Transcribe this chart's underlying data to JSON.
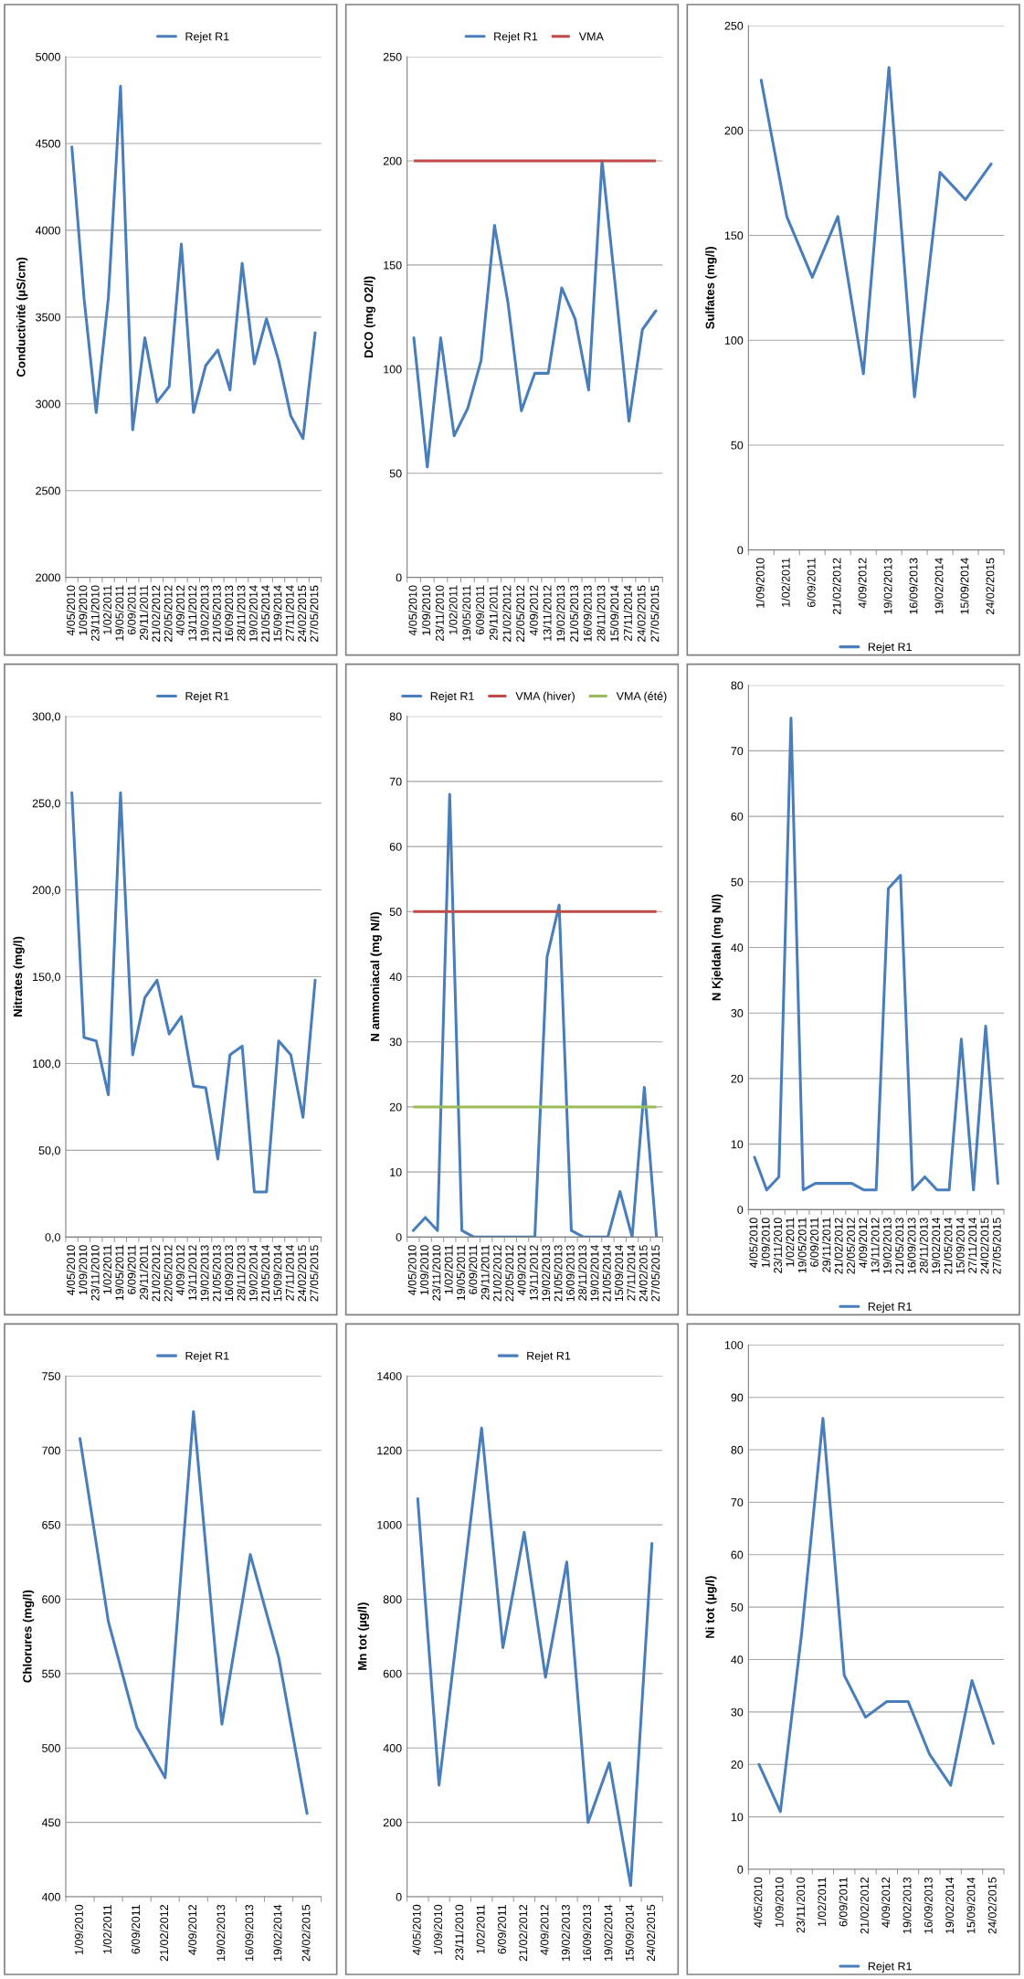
{
  "chart_data": [
    {
      "type": "line",
      "ylabel": "Conductivité (µS/cm)",
      "categories": [
        "4/05/2010",
        "1/09/2010",
        "23/11/2010",
        "1/02/2011",
        "19/05/2011",
        "6/09/2011",
        "29/11/2011",
        "21/02/2012",
        "22/05/2012",
        "4/09/2012",
        "13/11/2012",
        "19/02/2013",
        "21/05/2013",
        "16/09/2013",
        "28/11/2013",
        "19/02/2014",
        "21/05/2014",
        "15/09/2014",
        "27/11/2014",
        "24/02/2015",
        "27/05/2015"
      ],
      "series": [
        {
          "name": "Rejet R1",
          "color": "#4a7ebb",
          "values": [
            4480,
            3610,
            2950,
            3610,
            4830,
            2850,
            3380,
            3010,
            3100,
            3920,
            2950,
            3220,
            3310,
            3080,
            3810,
            3230,
            3490,
            3250,
            2930,
            2800,
            3410
          ]
        }
      ],
      "ylim": [
        2000,
        5000
      ],
      "yticks": [
        2000,
        2500,
        3000,
        3500,
        4000,
        4500,
        5000
      ],
      "grid": "y",
      "legend": "top"
    },
    {
      "type": "line",
      "ylabel": "DCO (mg O2/l)",
      "categories": [
        "4/05/2010",
        "1/09/2010",
        "23/11/2010",
        "1/02/2011",
        "19/05/2011",
        "6/09/2011",
        "29/11/2011",
        "21/02/2012",
        "22/05/2012",
        "4/09/2012",
        "13/11/2012",
        "19/02/2013",
        "21/05/2013",
        "16/09/2013",
        "28/11/2013",
        "15/09/2014",
        "27/11/2014",
        "24/02/2015",
        "27/05/2015"
      ],
      "series": [
        {
          "name": "Rejet R1",
          "color": "#4a7ebb",
          "values": [
            115,
            53,
            115,
            68,
            81,
            104,
            169,
            132,
            80,
            98,
            98,
            139,
            124,
            90,
            200,
            139,
            75,
            119,
            128
          ]
        }
      ],
      "ref_lines": [
        {
          "axis": "y",
          "value": 200,
          "label": "VMA",
          "color": "#be4b48"
        }
      ],
      "ylim": [
        0,
        250
      ],
      "yticks": [
        0,
        50,
        100,
        150,
        200,
        250
      ],
      "grid": "y",
      "legend": "top"
    },
    {
      "type": "line",
      "ylabel": "Sulfates (mg/l)",
      "categories": [
        "1/09/2010",
        "1/02/2011",
        "6/09/2011",
        "21/02/2012",
        "4/09/2012",
        "19/02/2013",
        "16/09/2013",
        "19/02/2014",
        "15/09/2014",
        "24/02/2015"
      ],
      "series": [
        {
          "name": "Rejet R1",
          "color": "#4a7ebb",
          "values": [
            224,
            159,
            130,
            159,
            84,
            230,
            73,
            180,
            167,
            184
          ]
        }
      ],
      "ylim": [
        0,
        250
      ],
      "yticks": [
        0,
        50,
        100,
        150,
        200,
        250
      ],
      "grid": "y",
      "legend": "bottom"
    },
    {
      "type": "line",
      "ylabel": "Nitrates (mg/l)",
      "categories": [
        "4/05/2010",
        "1/09/2010",
        "23/11/2010",
        "1/02/2011",
        "19/05/2011",
        "6/09/2011",
        "29/11/2011",
        "21/02/2012",
        "22/05/2012",
        "4/09/2012",
        "13/11/2012",
        "19/02/2013",
        "21/05/2013",
        "16/09/2013",
        "28/11/2013",
        "19/02/2014",
        "21/05/2014",
        "15/09/2014",
        "27/11/2014",
        "24/02/2015",
        "27/05/2015"
      ],
      "series": [
        {
          "name": "Rejet R1",
          "color": "#4a7ebb",
          "values": [
            256,
            115,
            113,
            82,
            256,
            105,
            138,
            148,
            117,
            127,
            87,
            86,
            45,
            105,
            110,
            26,
            26,
            113,
            105,
            69,
            148
          ]
        }
      ],
      "ylim": [
        0,
        300
      ],
      "yticks": [
        {
          "value": 0,
          "label": "0,0"
        },
        {
          "value": 50,
          "label": "50,0"
        },
        {
          "value": 100,
          "label": "100,0"
        },
        {
          "value": 150,
          "label": "150,0"
        },
        {
          "value": 200,
          "label": "200,0"
        },
        {
          "value": 250,
          "label": "250,0"
        },
        {
          "value": 300,
          "label": "300,0"
        }
      ],
      "grid": "y",
      "legend": "top"
    },
    {
      "type": "line",
      "ylabel": "N ammoniacal (mg N/l)",
      "categories": [
        "4/05/2010",
        "1/09/2010",
        "23/11/2010",
        "1/02/2011",
        "19/05/2011",
        "6/09/2011",
        "29/11/2011",
        "21/02/2012",
        "22/05/2012",
        "4/09/2012",
        "13/11/2012",
        "19/02/2013",
        "21/05/2013",
        "16/09/2013",
        "28/11/2013",
        "19/02/2014",
        "21/05/2014",
        "15/09/2014",
        "27/11/2014",
        "24/02/2015",
        "27/05/2015"
      ],
      "series": [
        {
          "name": "Rejet R1",
          "color": "#4a7ebb",
          "values": [
            1,
            3,
            1,
            68,
            1,
            0,
            0,
            0,
            0,
            0,
            0,
            43,
            51,
            1,
            0,
            0,
            0,
            7,
            0,
            23,
            0
          ]
        }
      ],
      "ref_lines": [
        {
          "axis": "y",
          "value": 50,
          "label": "VMA (hiver)",
          "color": "#be4b48"
        },
        {
          "axis": "y",
          "value": 20,
          "label": "VMA (été)",
          "color": "#9bbb59"
        }
      ],
      "ylim": [
        0,
        80
      ],
      "yticks": [
        0,
        10,
        20,
        30,
        40,
        50,
        60,
        70,
        80
      ],
      "grid": "y",
      "legend": "top"
    },
    {
      "type": "line",
      "ylabel": "N Kjeldahl (mg N/l)",
      "categories": [
        "4/05/2010",
        "1/09/2010",
        "23/11/2010",
        "1/02/2011",
        "19/05/2011",
        "6/09/2011",
        "29/11/2011",
        "21/02/2012",
        "22/05/2012",
        "4/09/2012",
        "13/11/2012",
        "19/02/2013",
        "21/05/2013",
        "16/09/2013",
        "28/11/2013",
        "19/02/2014",
        "21/05/2014",
        "15/09/2014",
        "27/11/2014",
        "24/02/2015",
        "27/05/2015"
      ],
      "series": [
        {
          "name": "Rejet R1",
          "color": "#4a7ebb",
          "values": [
            8,
            3,
            5,
            75,
            3,
            4,
            4,
            4,
            4,
            3,
            3,
            49,
            51,
            3,
            5,
            3,
            3,
            26,
            3,
            28,
            4
          ]
        }
      ],
      "ylim": [
        0,
        80
      ],
      "yticks": [
        0,
        10,
        20,
        30,
        40,
        50,
        60,
        70,
        80
      ],
      "grid": "y",
      "legend": "bottom"
    },
    {
      "type": "line",
      "ylabel": "Chlorures (mg/l)",
      "categories": [
        "1/09/2010",
        "1/02/2011",
        "6/09/2011",
        "21/02/2012",
        "4/09/2012",
        "19/02/2013",
        "16/09/2013",
        "19/02/2014",
        "24/02/2015"
      ],
      "series": [
        {
          "name": "Rejet R1",
          "color": "#4a7ebb",
          "values": [
            708,
            585,
            514,
            480,
            726,
            516,
            630,
            561,
            456
          ]
        }
      ],
      "ylim": [
        400,
        750
      ],
      "yticks": [
        400,
        450,
        500,
        550,
        600,
        650,
        700,
        750
      ],
      "grid": "y",
      "legend": "top"
    },
    {
      "type": "line",
      "ylabel": "Mn tot (µg/l)",
      "categories": [
        "4/05/2010",
        "1/09/2010",
        "23/11/2010",
        "1/02/2011",
        "6/09/2011",
        "21/02/2012",
        "4/09/2012",
        "19/02/2013",
        "16/09/2013",
        "19/02/2014",
        "15/09/2014",
        "24/02/2015"
      ],
      "series": [
        {
          "name": "Rejet R1",
          "color": "#4a7ebb",
          "values": [
            1070,
            300,
            780,
            1260,
            670,
            980,
            590,
            900,
            200,
            360,
            30,
            950
          ]
        }
      ],
      "ylim": [
        0,
        1400
      ],
      "yticks": [
        0,
        200,
        400,
        600,
        800,
        1000,
        1200,
        1400
      ],
      "grid": "y",
      "legend": "top"
    },
    {
      "type": "line",
      "ylabel": "Ni tot (µg/l)",
      "categories": [
        "4/05/2010",
        "1/09/2010",
        "23/11/2010",
        "1/02/2011",
        "6/09/2011",
        "21/02/2012",
        "4/09/2012",
        "19/02/2013",
        "16/09/2013",
        "19/02/2014",
        "15/09/2014",
        "24/02/2015"
      ],
      "series": [
        {
          "name": "Rejet R1",
          "color": "#4a7ebb",
          "values": [
            20,
            11,
            45,
            86,
            37,
            29,
            32,
            32,
            22,
            16,
            36,
            24
          ]
        }
      ],
      "ylim": [
        0,
        100
      ],
      "yticks": [
        0,
        10,
        20,
        30,
        40,
        50,
        60,
        70,
        80,
        90,
        100
      ],
      "grid": "y",
      "legend": "bottom"
    }
  ]
}
